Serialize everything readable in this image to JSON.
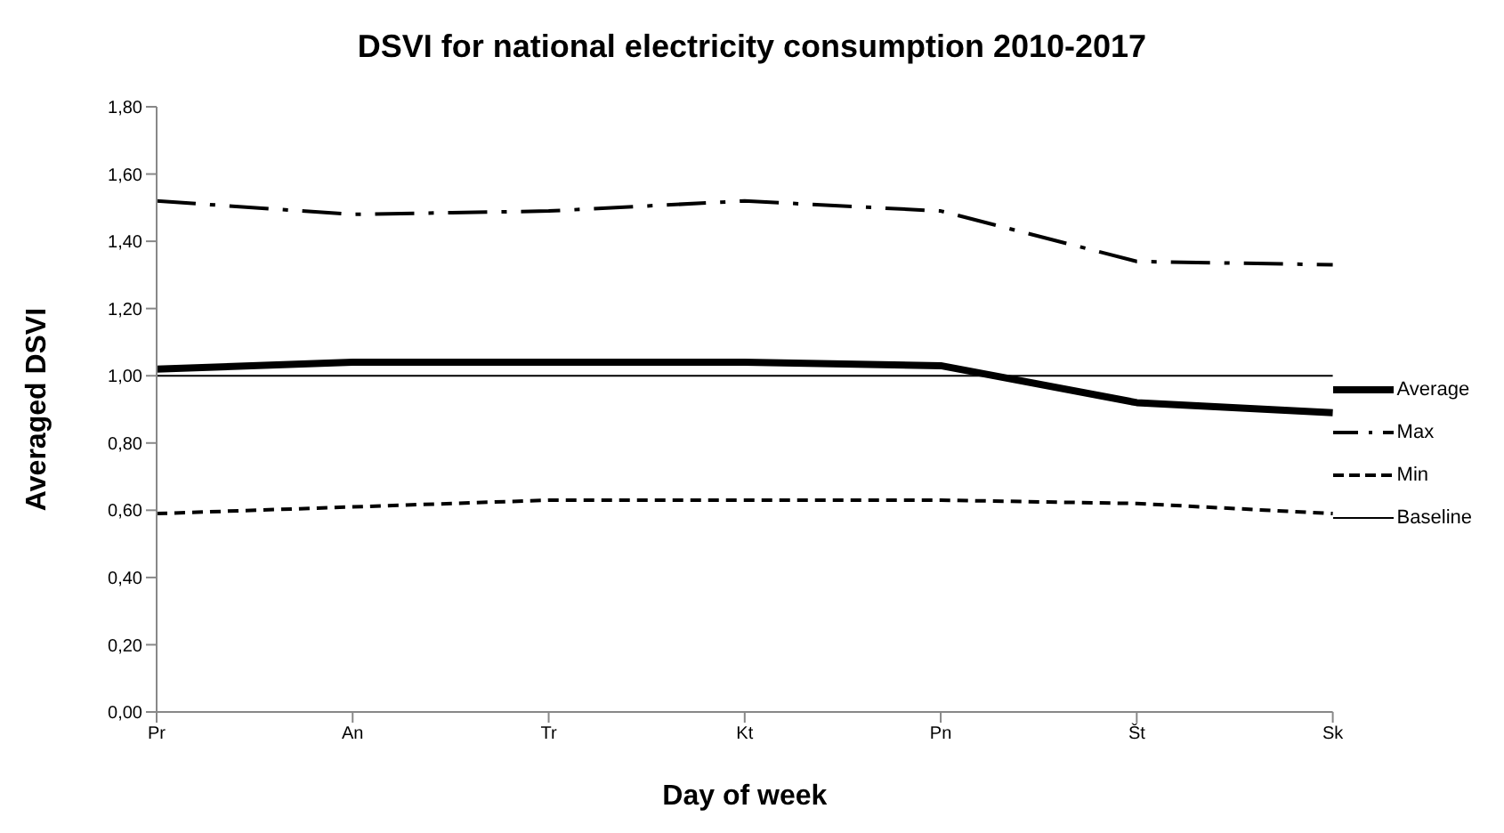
{
  "chart_data": {
    "type": "line",
    "title": "DSVI for national electricity consumption 2010-2017",
    "xlabel": "Day of week",
    "ylabel": "Averaged DSVI",
    "categories": [
      "Pr",
      "An",
      "Tr",
      "Kt",
      "Pn",
      "Št",
      "Sk"
    ],
    "series": [
      {
        "name": "Average",
        "color": "#000000",
        "line_style": "solid",
        "values": [
          1.02,
          1.04,
          1.04,
          1.04,
          1.03,
          0.92,
          0.89
        ]
      },
      {
        "name": "Max",
        "color": "#000000",
        "line_style": "dashdot",
        "values": [
          1.52,
          1.48,
          1.49,
          1.52,
          1.49,
          1.34,
          1.33
        ]
      },
      {
        "name": "Min",
        "color": "#000000",
        "line_style": "dashed",
        "values": [
          0.59,
          0.61,
          0.63,
          0.63,
          0.63,
          0.62,
          0.59
        ]
      },
      {
        "name": "Baseline",
        "color": "#000000",
        "line_style": "solid",
        "values": [
          1,
          1,
          1,
          1,
          1,
          1,
          1
        ]
      }
    ],
    "ylim": [
      0,
      1.8
    ],
    "yticks": [
      {
        "value": 0,
        "label": "0,00"
      },
      {
        "value": 0.2,
        "label": "0,20"
      },
      {
        "value": 0.4,
        "label": "0,40"
      },
      {
        "value": 0.6,
        "label": "0,60"
      },
      {
        "value": 0.8,
        "label": "0,80"
      },
      {
        "value": 1,
        "label": "1,00"
      },
      {
        "value": 1.2,
        "label": "1,20"
      },
      {
        "value": 1.4,
        "label": "1,40"
      },
      {
        "value": 1.6,
        "label": "1,60"
      },
      {
        "value": 1.8,
        "label": "1,80"
      }
    ],
    "grid": false,
    "legend": "right",
    "marker": "none"
  }
}
